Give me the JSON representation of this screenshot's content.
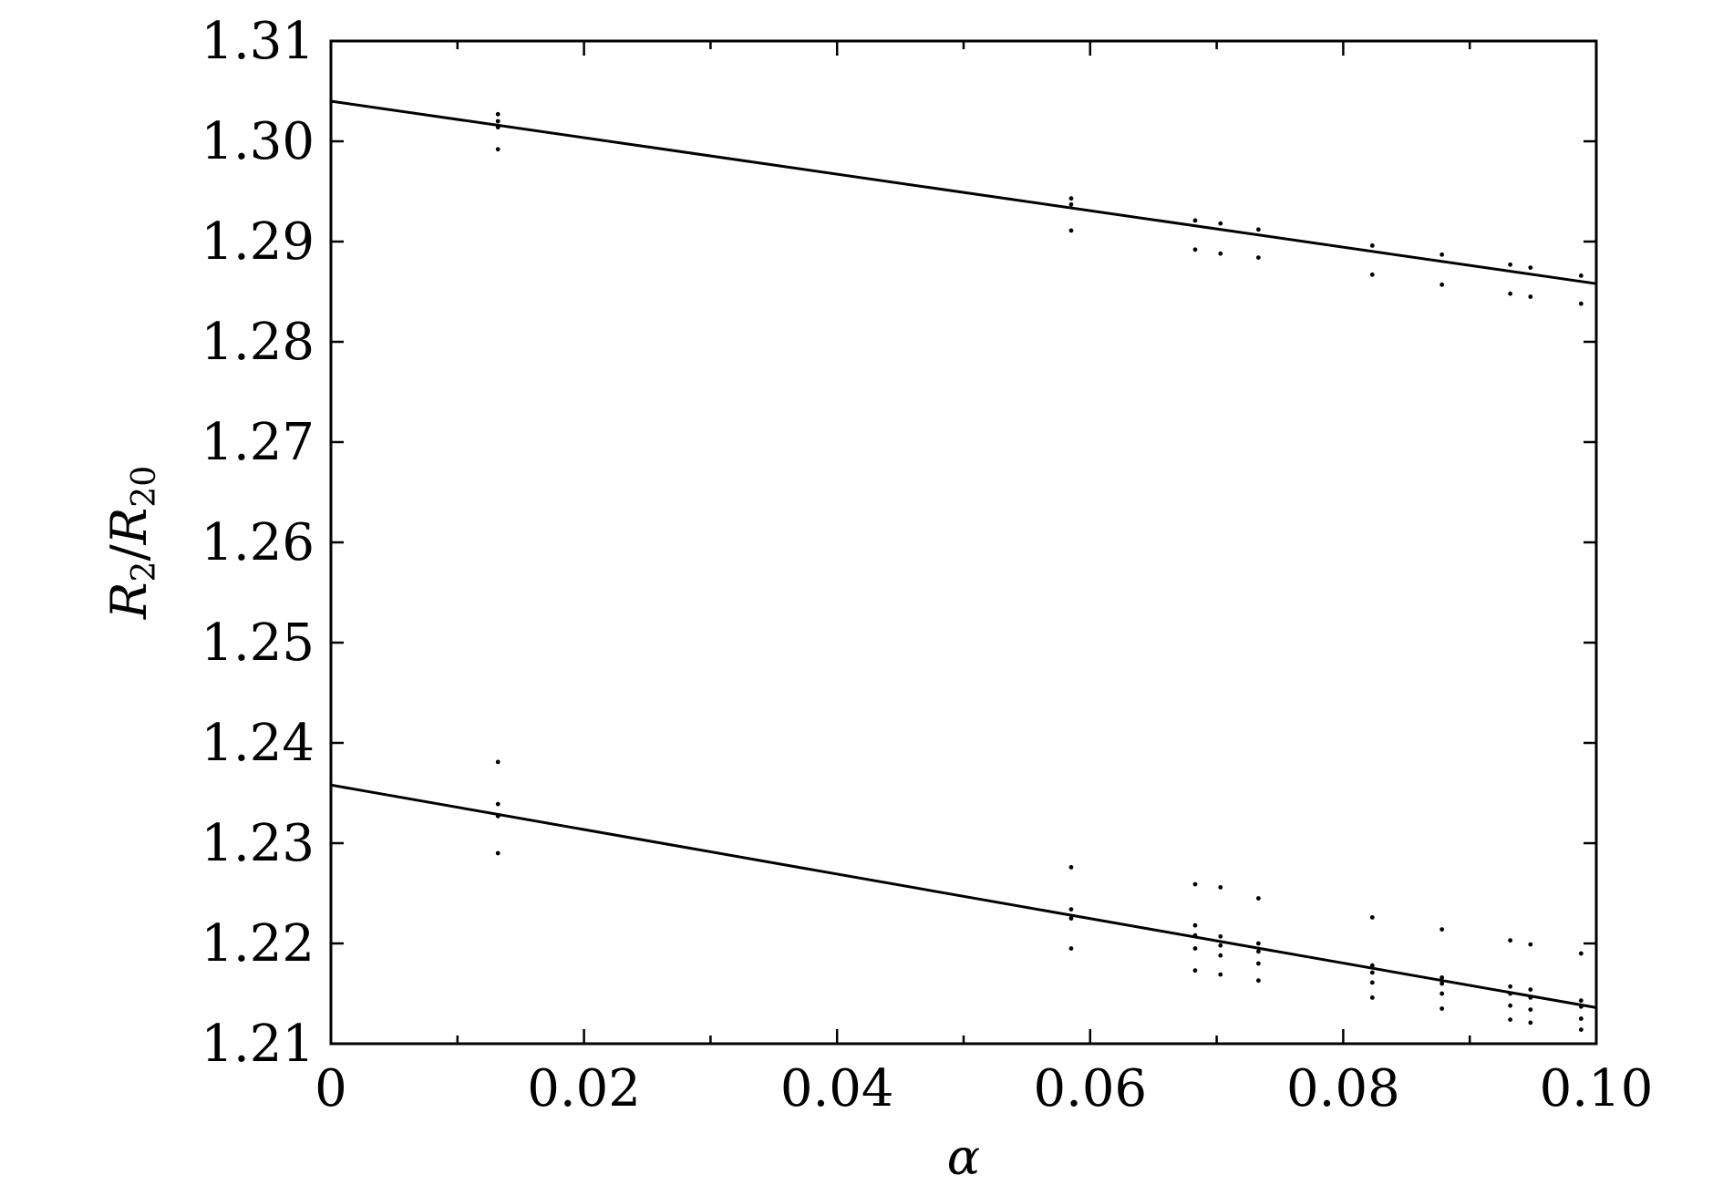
{
  "chart_data": {
    "type": "scatter",
    "title": "",
    "xlabel": "α",
    "ylabel": {
      "R": "R",
      "sub1": "2",
      "slash": "/",
      "sub2": "20"
    },
    "xlim": [
      0,
      0.1
    ],
    "ylim": [
      1.21,
      1.31
    ],
    "grid": false,
    "legend": "none",
    "x_ticks": [
      0,
      0.02,
      0.04,
      0.06,
      0.08,
      0.1
    ],
    "x_tick_labels": [
      "0",
      "0.02",
      "0.04",
      "0.06",
      "0.08",
      "0.10"
    ],
    "x_minor_ticks": [
      0.01,
      0.03,
      0.05,
      0.07,
      0.09
    ],
    "y_ticks": [
      1.21,
      1.22,
      1.23,
      1.24,
      1.25,
      1.26,
      1.27,
      1.28,
      1.29,
      1.3,
      1.31
    ],
    "y_tick_labels": [
      "1.21",
      "1.22",
      "1.23",
      "1.24",
      "1.25",
      "1.26",
      "1.27",
      "1.28",
      "1.29",
      "1.30",
      "1.31"
    ],
    "fit_lines": [
      {
        "x": [
          0,
          0.1
        ],
        "y": [
          1.304,
          1.2858
        ]
      },
      {
        "x": [
          0,
          0.1
        ],
        "y": [
          1.2358,
          1.2136
        ]
      }
    ],
    "points": [
      {
        "x": 0.0132,
        "y": 1.3027
      },
      {
        "x": 0.0132,
        "y": 1.302
      },
      {
        "x": 0.0132,
        "y": 1.3014
      },
      {
        "x": 0.0132,
        "y": 1.2992
      },
      {
        "x": 0.0585,
        "y": 1.2943
      },
      {
        "x": 0.0585,
        "y": 1.2937
      },
      {
        "x": 0.0585,
        "y": 1.2911
      },
      {
        "x": 0.0683,
        "y": 1.2921
      },
      {
        "x": 0.0683,
        "y": 1.2892
      },
      {
        "x": 0.0703,
        "y": 1.2918
      },
      {
        "x": 0.0703,
        "y": 1.2888
      },
      {
        "x": 0.0733,
        "y": 1.2912
      },
      {
        "x": 0.0733,
        "y": 1.2884
      },
      {
        "x": 0.0823,
        "y": 1.2896
      },
      {
        "x": 0.0823,
        "y": 1.2867
      },
      {
        "x": 0.0878,
        "y": 1.2887
      },
      {
        "x": 0.0878,
        "y": 1.2857
      },
      {
        "x": 0.0932,
        "y": 1.2877
      },
      {
        "x": 0.0932,
        "y": 1.2848
      },
      {
        "x": 0.0948,
        "y": 1.2874
      },
      {
        "x": 0.0948,
        "y": 1.2845
      },
      {
        "x": 0.0988,
        "y": 1.2866
      },
      {
        "x": 0.0988,
        "y": 1.2838
      },
      {
        "x": 0.0132,
        "y": 1.2381
      },
      {
        "x": 0.0132,
        "y": 1.2339
      },
      {
        "x": 0.0132,
        "y": 1.2327
      },
      {
        "x": 0.0132,
        "y": 1.229
      },
      {
        "x": 0.0585,
        "y": 1.2276
      },
      {
        "x": 0.0585,
        "y": 1.2234
      },
      {
        "x": 0.0585,
        "y": 1.2225
      },
      {
        "x": 0.0585,
        "y": 1.2195
      },
      {
        "x": 0.0683,
        "y": 1.2259
      },
      {
        "x": 0.0683,
        "y": 1.2218
      },
      {
        "x": 0.0683,
        "y": 1.2208
      },
      {
        "x": 0.0683,
        "y": 1.2195
      },
      {
        "x": 0.0683,
        "y": 1.2173
      },
      {
        "x": 0.0703,
        "y": 1.2256
      },
      {
        "x": 0.0703,
        "y": 1.2207
      },
      {
        "x": 0.0703,
        "y": 1.2198
      },
      {
        "x": 0.0703,
        "y": 1.2188
      },
      {
        "x": 0.0703,
        "y": 1.2169
      },
      {
        "x": 0.0733,
        "y": 1.2245
      },
      {
        "x": 0.0733,
        "y": 1.22
      },
      {
        "x": 0.0733,
        "y": 1.2192
      },
      {
        "x": 0.0733,
        "y": 1.218
      },
      {
        "x": 0.0733,
        "y": 1.2163
      },
      {
        "x": 0.0823,
        "y": 1.2226
      },
      {
        "x": 0.0823,
        "y": 1.2178
      },
      {
        "x": 0.0823,
        "y": 1.2171
      },
      {
        "x": 0.0823,
        "y": 1.2161
      },
      {
        "x": 0.0823,
        "y": 1.2146
      },
      {
        "x": 0.0878,
        "y": 1.2214
      },
      {
        "x": 0.0878,
        "y": 1.2166
      },
      {
        "x": 0.0878,
        "y": 1.216
      },
      {
        "x": 0.0878,
        "y": 1.215
      },
      {
        "x": 0.0878,
        "y": 1.2135
      },
      {
        "x": 0.0932,
        "y": 1.2203
      },
      {
        "x": 0.0932,
        "y": 1.2157
      },
      {
        "x": 0.0932,
        "y": 1.215
      },
      {
        "x": 0.0932,
        "y": 1.2138
      },
      {
        "x": 0.0932,
        "y": 1.2124
      },
      {
        "x": 0.0948,
        "y": 1.2199
      },
      {
        "x": 0.0948,
        "y": 1.2154
      },
      {
        "x": 0.0948,
        "y": 1.2146
      },
      {
        "x": 0.0948,
        "y": 1.2134
      },
      {
        "x": 0.0948,
        "y": 1.2121
      },
      {
        "x": 0.0988,
        "y": 1.219
      },
      {
        "x": 0.0988,
        "y": 1.2143
      },
      {
        "x": 0.0988,
        "y": 1.2137
      },
      {
        "x": 0.0988,
        "y": 1.2125
      },
      {
        "x": 0.0988,
        "y": 1.2114
      }
    ]
  }
}
